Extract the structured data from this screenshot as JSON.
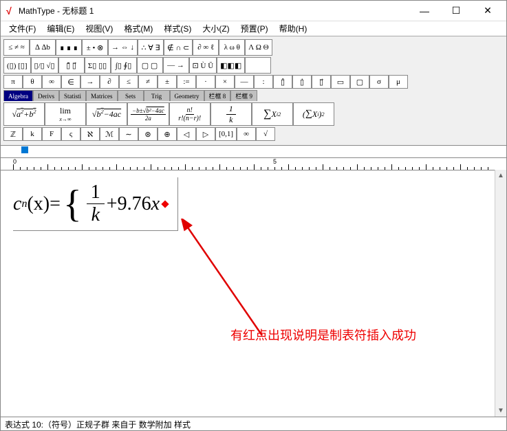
{
  "window": {
    "app_icon_glyph": "√",
    "title": "MathType - 无标题 1",
    "buttons": {
      "min": "—",
      "max": "☐",
      "close": "✕"
    }
  },
  "menu": [
    "文件(F)",
    "编辑(E)",
    "视图(V)",
    "格式(M)",
    "样式(S)",
    "大小(Z)",
    "预置(P)",
    "帮助(H)"
  ],
  "palette": {
    "row1": [
      "≤ ≠ ≈",
      "∆ ∆b",
      "∎ ∎ ∎",
      "± • ⊗",
      "→ ⇔ ↓",
      "∴ ∀ ∃",
      "∉ ∩ ⊂",
      "∂ ∞ ℓ",
      "λ ω θ",
      "Λ Ω Θ"
    ],
    "row2": [
      "(▯) [▯]",
      "▯/▯ √▯",
      "▯̄ ▯⃗",
      "Σ▯ ▯▯",
      "∫▯ ∮▯",
      "▢ ▢",
      "— →",
      "⊡ Ù Ū",
      "◧◧◧",
      ""
    ],
    "row3": [
      "π",
      "θ",
      "∞",
      "∈",
      "→",
      "∂",
      "≤",
      "≠",
      "±",
      ":=",
      "·",
      "×",
      "—",
      ":",
      "▯̂",
      "▯̇",
      "▯⃗",
      "▭",
      "▢",
      "σ",
      "μ"
    ],
    "tabs": [
      "Algebra",
      "Derivs",
      "Statisti",
      "Matrices",
      "Sets",
      "Trig",
      "Geometry",
      "栏框 8",
      "栏框 9"
    ],
    "active_tab": 0,
    "row5": [
      "√(a²+b²)",
      "lim x→∞",
      "√(b²−4ac)",
      "(−b±√(b²−4ac))/2a",
      "n!/(r!(n−r)!)",
      "1/k",
      "∑Xᵢ²",
      "(∑Xᵢ)²"
    ],
    "row6": [
      "ℤ",
      "k",
      "F",
      "ς",
      "ℵ",
      "ℳ",
      "∼",
      "⊛",
      "⊕",
      "◁",
      "▷",
      "[0,1]",
      "∞",
      "√"
    ]
  },
  "ruler": {
    "start": 0,
    "mid": 5
  },
  "equation": {
    "base_var": "c",
    "sub": "n",
    "arg": "(x)",
    "equals": " = ",
    "frac_num": "1",
    "frac_den": "k",
    "plus": " + ",
    "coef": "9.76",
    "var2": "x"
  },
  "annotation": {
    "text": "有红点出现说明是制表符插入成功",
    "arrow_color": "#e00000"
  },
  "statusbar": "表达式 10:（符号）正规子群 来自于 数学附加 样式"
}
